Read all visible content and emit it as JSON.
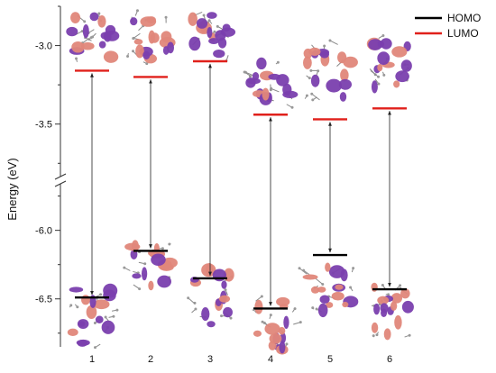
{
  "chart_data": {
    "type": "energy-level-diagram",
    "ylabel": "Energy (eV)",
    "categories": [
      "1",
      "2",
      "3",
      "4",
      "5",
      "6"
    ],
    "y_ticks": [
      {
        "label": "-3.0",
        "value": -3.0
      },
      {
        "label": "-3.5",
        "value": -3.5
      },
      {
        "label": "-6.0",
        "value": -6.0
      },
      {
        "label": "-6.5",
        "value": -6.5
      }
    ],
    "axis_break": {
      "from": -3.8,
      "to": -5.7
    },
    "upper_range": [
      -2.75,
      -3.8
    ],
    "lower_range": [
      -5.7,
      -6.85
    ],
    "series": [
      {
        "name": "HOMO",
        "color": "#000000",
        "values": [
          -6.49,
          -6.15,
          -6.35,
          -6.57,
          -6.18,
          -6.43
        ]
      },
      {
        "name": "LUMO",
        "color": "#e0201b",
        "values": [
          -3.16,
          -3.2,
          -3.1,
          -3.44,
          -3.47,
          -3.4
        ]
      }
    ],
    "legend": "top-right",
    "orbital_colors": {
      "positive": "#e0877a",
      "negative": "#7a3fae"
    }
  }
}
